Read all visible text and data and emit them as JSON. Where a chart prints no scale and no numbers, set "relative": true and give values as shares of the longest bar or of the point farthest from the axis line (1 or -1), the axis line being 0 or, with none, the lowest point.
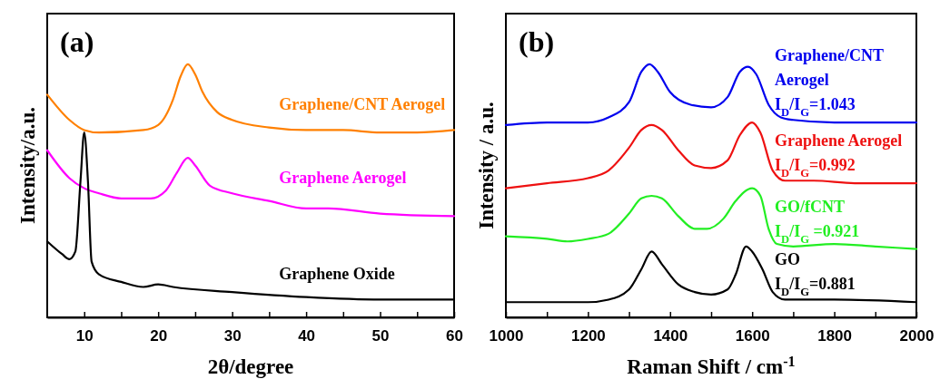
{
  "chart_data": [
    {
      "type": "line",
      "title": "(a)",
      "xlabel": "2θ/degree",
      "ylabel": "Intensity/a.u.",
      "relative": true,
      "xlim": [
        5,
        60
      ],
      "xticks": [
        10,
        {
          "value": 15,
          "label": null
        },
        20,
        {
          "value": 25,
          "label": null
        },
        30,
        {
          "value": 35,
          "label": null
        },
        40,
        {
          "value": 45,
          "label": null
        },
        50,
        {
          "value": 55,
          "label": null
        },
        60
      ],
      "series": [
        {
          "name": "Graphene/CNT Aerogel",
          "color": "#ff8000",
          "x": [
            5,
            8,
            10,
            12,
            18,
            20,
            22,
            23,
            24,
            25,
            26,
            28,
            30,
            35,
            40,
            45,
            50,
            55,
            60
          ],
          "values": [
            0.88,
            0.78,
            0.74,
            0.73,
            0.74,
            0.76,
            0.86,
            0.95,
            1.0,
            0.96,
            0.89,
            0.81,
            0.78,
            0.75,
            0.74,
            0.74,
            0.73,
            0.73,
            0.74
          ]
        },
        {
          "name": "Graphene Aerogel",
          "color": "#ff00ff",
          "x": [
            5,
            8,
            10,
            12,
            15,
            19,
            21,
            22.5,
            24,
            25,
            27,
            30,
            35,
            40,
            43,
            50,
            60
          ],
          "values": [
            0.66,
            0.55,
            0.51,
            0.49,
            0.47,
            0.47,
            0.5,
            0.57,
            0.63,
            0.6,
            0.52,
            0.49,
            0.46,
            0.43,
            0.43,
            0.41,
            0.4
          ]
        },
        {
          "name": "Graphene Oxide",
          "color": "#000000",
          "x": [
            5,
            7,
            8,
            8.8,
            9.5,
            10,
            10.5,
            11,
            12,
            15,
            18,
            20,
            22,
            30,
            40,
            50,
            60
          ],
          "values": [
            0.3,
            0.25,
            0.23,
            0.26,
            0.54,
            0.73,
            0.54,
            0.22,
            0.17,
            0.14,
            0.12,
            0.13,
            0.12,
            0.1,
            0.08,
            0.07,
            0.07
          ]
        }
      ]
    },
    {
      "type": "line",
      "title": "(b)",
      "xlabel": "Raman Shift / cm$^{-1}$",
      "ylabel": "Intensity / a.u.",
      "relative": true,
      "xlim": [
        1000,
        2000
      ],
      "xticks": [
        1000,
        {
          "value": 1100,
          "label": null
        },
        1200,
        {
          "value": 1300,
          "label": null
        },
        1400,
        {
          "value": 1500,
          "label": null
        },
        1600,
        {
          "value": 1700,
          "label": null
        },
        1800,
        {
          "value": 1900,
          "label": null
        },
        2000
      ],
      "annotations": [
        "I$_{D}$/I$_{G}$=1.043",
        "I$_{D}$/I$_{G}$=0.992",
        "I$_{D}$/I$_{G}$ =0.921",
        "I$_{D}$/I$_{G}$=0.881"
      ],
      "series": [
        {
          "name": "Graphene/CNT Aerogel",
          "color": "#0000ee",
          "x": [
            1000,
            1100,
            1200,
            1250,
            1300,
            1330,
            1350,
            1370,
            1400,
            1450,
            1500,
            1540,
            1570,
            1590,
            1610,
            1640,
            1670,
            1700,
            1800,
            1900,
            2000
          ],
          "values": [
            0.76,
            0.77,
            0.77,
            0.79,
            0.85,
            0.97,
            1.0,
            0.97,
            0.89,
            0.84,
            0.83,
            0.87,
            0.97,
            0.99,
            0.96,
            0.84,
            0.79,
            0.78,
            0.77,
            0.77,
            0.77
          ]
        },
        {
          "name": "Graphene Aerogel",
          "color": "#ee1111",
          "x": [
            1000,
            1100,
            1200,
            1250,
            1300,
            1330,
            1355,
            1380,
            1420,
            1460,
            1500,
            1540,
            1570,
            1600,
            1620,
            1650,
            1680,
            1750,
            1850,
            2000
          ],
          "values": [
            0.51,
            0.53,
            0.55,
            0.58,
            0.67,
            0.74,
            0.76,
            0.74,
            0.66,
            0.6,
            0.59,
            0.62,
            0.72,
            0.77,
            0.73,
            0.58,
            0.54,
            0.54,
            0.53,
            0.53
          ]
        },
        {
          "name": "GO/fCNT",
          "color": "#22ee22",
          "x": [
            1000,
            1100,
            1150,
            1200,
            1250,
            1300,
            1330,
            1355,
            1380,
            1420,
            1460,
            1490,
            1530,
            1560,
            1600,
            1620,
            1640,
            1660,
            1700,
            1800,
            1900,
            2000
          ],
          "values": [
            0.32,
            0.31,
            0.3,
            0.31,
            0.33,
            0.41,
            0.47,
            0.48,
            0.47,
            0.4,
            0.35,
            0.35,
            0.39,
            0.46,
            0.51,
            0.48,
            0.35,
            0.29,
            0.28,
            0.29,
            0.28,
            0.27
          ]
        },
        {
          "name": "GO",
          "color": "#000000",
          "x": [
            1000,
            1100,
            1200,
            1250,
            1300,
            1330,
            1355,
            1380,
            1420,
            1460,
            1500,
            1540,
            1560,
            1585,
            1600,
            1625,
            1650,
            1680,
            1800,
            2000
          ],
          "values": [
            0.06,
            0.06,
            0.06,
            0.07,
            0.11,
            0.19,
            0.26,
            0.21,
            0.13,
            0.1,
            0.09,
            0.11,
            0.17,
            0.28,
            0.26,
            0.19,
            0.1,
            0.07,
            0.07,
            0.06
          ]
        }
      ]
    }
  ]
}
